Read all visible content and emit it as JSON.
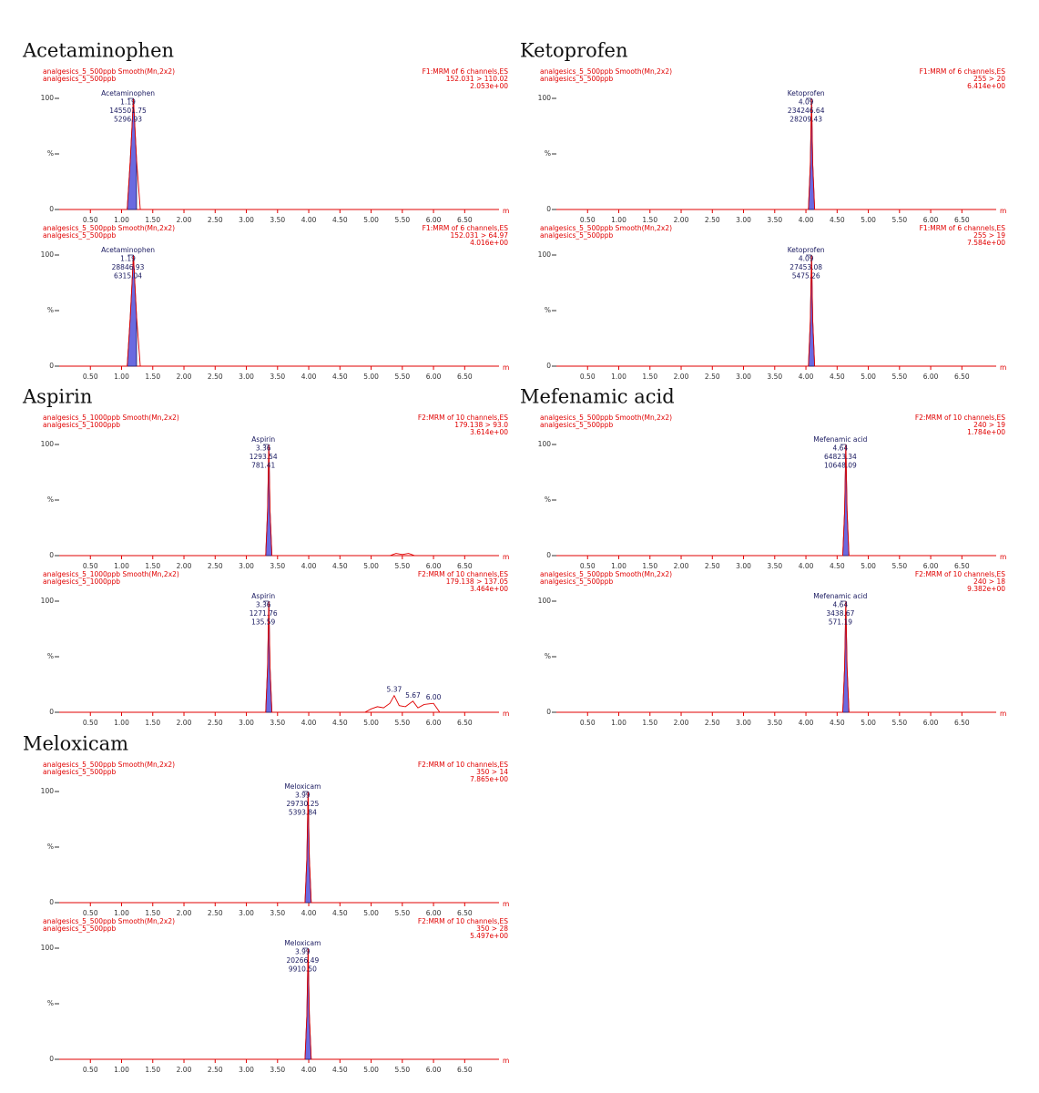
{
  "chart_data": [
    {
      "type": "line",
      "title": "Acetaminophen",
      "header_left": [
        "analgesics_5_500ppb Smooth(Mn,2x2)",
        "analgesics_5_500ppb"
      ],
      "header_right": [
        "F1:MRM of 6 channels,ES",
        "152.031 > 110.02",
        "2.053e+00"
      ],
      "peak_label": [
        "Acetaminophen",
        "1.19",
        "145501.75",
        "5296.93"
      ],
      "x": [
        0,
        1.09,
        1.14,
        1.19,
        1.24,
        1.3,
        7.05
      ],
      "values": [
        0,
        0,
        45,
        100,
        45,
        0,
        0
      ],
      "xlim": [
        0,
        7.05
      ],
      "ylim": [
        0,
        100
      ],
      "xticks": [
        {
          "value": 0.5,
          "label": "0.50"
        },
        {
          "value": 1,
          "label": "1.00"
        },
        {
          "value": 1.5,
          "label": "1.50"
        },
        {
          "value": 2,
          "label": "2.00"
        },
        {
          "value": 2.5,
          "label": "2.50"
        },
        {
          "value": 3,
          "label": "3.00"
        },
        {
          "value": 3.5,
          "label": "3.50"
        },
        {
          "value": 4,
          "label": "4.00"
        },
        {
          "value": 4.5,
          "label": "4.50"
        },
        {
          "value": 5,
          "label": "5.00"
        },
        {
          "value": 5.5,
          "label": "5.50"
        },
        {
          "value": 6,
          "label": "6.00"
        },
        {
          "value": 6.5,
          "label": "6.50"
        }
      ],
      "yticks": [
        0,
        {
          "value": 50,
          "label": "%"
        },
        100
      ],
      "x_label": "m",
      "color": "#e00000",
      "fill_color": "#6a6ae0"
    },
    {
      "type": "line",
      "header_left": [
        "analgesics_5_500ppb Smooth(Mn,2x2)",
        "analgesics_5_500ppb"
      ],
      "header_right": [
        "F1:MRM of 6 channels,ES",
        "152.031 > 64.97",
        "4.016e+00"
      ],
      "peak_label": [
        "Acetaminophen",
        "1.19",
        "28846.93",
        "6315.04"
      ],
      "x": [
        0,
        1.09,
        1.14,
        1.19,
        1.24,
        1.3,
        7.05
      ],
      "values": [
        0,
        0,
        45,
        100,
        45,
        0,
        0
      ],
      "xlim": [
        0,
        7.05
      ],
      "ylim": [
        0,
        100
      ],
      "xticks": [
        {
          "value": 0.5,
          "label": "0.50"
        },
        {
          "value": 1,
          "label": "1.00"
        },
        {
          "value": 1.5,
          "label": "1.50"
        },
        {
          "value": 2,
          "label": "2.00"
        },
        {
          "value": 2.5,
          "label": "2.50"
        },
        {
          "value": 3,
          "label": "3.00"
        },
        {
          "value": 3.5,
          "label": "3.50"
        },
        {
          "value": 4,
          "label": "4.00"
        },
        {
          "value": 4.5,
          "label": "4.50"
        },
        {
          "value": 5,
          "label": "5.00"
        },
        {
          "value": 5.5,
          "label": "5.50"
        },
        {
          "value": 6,
          "label": "6.00"
        },
        {
          "value": 6.5,
          "label": "6.50"
        }
      ],
      "yticks": [
        0,
        {
          "value": 50,
          "label": "%"
        },
        100
      ],
      "x_label": "m",
      "color": "#e00000",
      "fill_color": "#6a6ae0"
    },
    {
      "type": "line",
      "title": "Ketoprofen",
      "header_left": [
        "analgesics_5_500ppb Smooth(Mn,2x2)",
        "analgesics_5_500ppb"
      ],
      "header_right": [
        "F1:MRM of 6 channels,ES",
        "255 > 20",
        "6.414e+00"
      ],
      "peak_label": [
        "Ketoprofen",
        "4.09",
        "234246.64",
        "28209.43"
      ],
      "x": [
        0,
        4.04,
        4.07,
        4.09,
        4.11,
        4.14,
        7.05
      ],
      "values": [
        0,
        0,
        40,
        100,
        40,
        0,
        0
      ],
      "xlim": [
        0,
        7.05
      ],
      "ylim": [
        0,
        100
      ],
      "xticks": [
        {
          "value": 0.5,
          "label": "0.50"
        },
        {
          "value": 1,
          "label": "1.00"
        },
        {
          "value": 1.5,
          "label": "1.50"
        },
        {
          "value": 2,
          "label": "2.00"
        },
        {
          "value": 2.5,
          "label": "2.50"
        },
        {
          "value": 3,
          "label": "3.00"
        },
        {
          "value": 3.5,
          "label": "3.50"
        },
        {
          "value": 4,
          "label": "4.00"
        },
        {
          "value": 4.5,
          "label": "4.50"
        },
        {
          "value": 5,
          "label": "5.00"
        },
        {
          "value": 5.5,
          "label": "5.50"
        },
        {
          "value": 6,
          "label": "6.00"
        },
        {
          "value": 6.5,
          "label": "6.50"
        }
      ],
      "yticks": [
        0,
        {
          "value": 50,
          "label": "%"
        },
        100
      ],
      "x_label": "m",
      "color": "#e00000",
      "fill_color": "#6a6ae0"
    },
    {
      "type": "line",
      "header_left": [
        "analgesics_5_500ppb Smooth(Mn,2x2)",
        "analgesics_5_500ppb"
      ],
      "header_right": [
        "F1:MRM of 6 channels,ES",
        "255 > 19",
        "7.584e+00"
      ],
      "peak_label": [
        "Ketoprofen",
        "4.09",
        "27453.08",
        "5475.26"
      ],
      "x": [
        0,
        4.04,
        4.07,
        4.09,
        4.11,
        4.14,
        7.05
      ],
      "values": [
        0,
        0,
        40,
        100,
        40,
        0,
        0
      ],
      "xlim": [
        0,
        7.05
      ],
      "ylim": [
        0,
        100
      ],
      "xticks": [
        {
          "value": 0.5,
          "label": "0.50"
        },
        {
          "value": 1,
          "label": "1.00"
        },
        {
          "value": 1.5,
          "label": "1.50"
        },
        {
          "value": 2,
          "label": "2.00"
        },
        {
          "value": 2.5,
          "label": "2.50"
        },
        {
          "value": 3,
          "label": "3.00"
        },
        {
          "value": 3.5,
          "label": "3.50"
        },
        {
          "value": 4,
          "label": "4.00"
        },
        {
          "value": 4.5,
          "label": "4.50"
        },
        {
          "value": 5,
          "label": "5.00"
        },
        {
          "value": 5.5,
          "label": "5.50"
        },
        {
          "value": 6,
          "label": "6.00"
        },
        {
          "value": 6.5,
          "label": "6.50"
        }
      ],
      "yticks": [
        0,
        {
          "value": 50,
          "label": "%"
        },
        100
      ],
      "x_label": "m",
      "color": "#e00000",
      "fill_color": "#6a6ae0"
    },
    {
      "type": "line",
      "title": "Aspirin",
      "header_left": [
        "analgesics_5_1000ppb Smooth(Mn,2x2)",
        "analgesics_5_1000ppb"
      ],
      "header_right": [
        "F2:MRM of 10 channels,ES",
        "179.138 > 93.0",
        "3.614e+00"
      ],
      "peak_label": [
        "Aspirin",
        "3.36",
        "1293.54",
        "781.41"
      ],
      "x": [
        0,
        3.31,
        3.34,
        3.36,
        3.38,
        3.41,
        5.3,
        5.4,
        5.5,
        5.6,
        5.7,
        7.05
      ],
      "values": [
        0,
        0,
        40,
        100,
        40,
        0,
        0,
        2,
        1,
        2,
        0,
        0
      ],
      "xlim": [
        0,
        7.05
      ],
      "ylim": [
        0,
        100
      ],
      "xticks": [
        {
          "value": 0.5,
          "label": "0.50"
        },
        {
          "value": 1,
          "label": "1.00"
        },
        {
          "value": 1.5,
          "label": "1.50"
        },
        {
          "value": 2,
          "label": "2.00"
        },
        {
          "value": 2.5,
          "label": "2.50"
        },
        {
          "value": 3,
          "label": "3.00"
        },
        {
          "value": 3.5,
          "label": "3.50"
        },
        {
          "value": 4,
          "label": "4.00"
        },
        {
          "value": 4.5,
          "label": "4.50"
        },
        {
          "value": 5,
          "label": "5.00"
        },
        {
          "value": 5.5,
          "label": "5.50"
        },
        {
          "value": 6,
          "label": "6.00"
        },
        {
          "value": 6.5,
          "label": "6.50"
        }
      ],
      "yticks": [
        0,
        {
          "value": 50,
          "label": "%"
        },
        100
      ],
      "x_label": "m",
      "color": "#e00000",
      "fill_color": "#6a6ae0"
    },
    {
      "type": "line",
      "header_left": [
        "analgesics_5_1000ppb Smooth(Mn,2x2)",
        "analgesics_5_1000ppb"
      ],
      "header_right": [
        "F2:MRM of 10 channels,ES",
        "179.138 > 137.05",
        "3.464e+00"
      ],
      "peak_label": [
        "Aspirin",
        "3.36",
        "1271.76",
        "135.59"
      ],
      "x": [
        0,
        3.31,
        3.34,
        3.36,
        3.38,
        3.41,
        4.9,
        5.0,
        5.1,
        5.2,
        5.3,
        5.37,
        5.45,
        5.55,
        5.67,
        5.75,
        5.85,
        6.0,
        6.1,
        7.05
      ],
      "values": [
        0,
        0,
        40,
        100,
        40,
        0,
        0,
        3,
        5,
        4,
        8,
        15,
        6,
        5,
        10,
        4,
        7,
        8,
        0,
        0
      ],
      "annotations": [
        {
          "x": 5.37,
          "y": 15,
          "label": "5.37"
        },
        {
          "x": 5.67,
          "y": 10,
          "label": "5.67"
        },
        {
          "x": 6,
          "y": 8,
          "label": "6.00"
        }
      ],
      "xlim": [
        0,
        7.05
      ],
      "ylim": [
        0,
        100
      ],
      "xticks": [
        {
          "value": 0.5,
          "label": "0.50"
        },
        {
          "value": 1,
          "label": "1.00"
        },
        {
          "value": 1.5,
          "label": "1.50"
        },
        {
          "value": 2,
          "label": "2.00"
        },
        {
          "value": 2.5,
          "label": "2.50"
        },
        {
          "value": 3,
          "label": "3.00"
        },
        {
          "value": 3.5,
          "label": "3.50"
        },
        {
          "value": 4,
          "label": "4.00"
        },
        {
          "value": 4.5,
          "label": "4.50"
        },
        {
          "value": 5,
          "label": "5.00"
        },
        {
          "value": 5.5,
          "label": "5.50"
        },
        {
          "value": 6,
          "label": "6.00"
        },
        {
          "value": 6.5,
          "label": "6.50"
        }
      ],
      "yticks": [
        0,
        {
          "value": 50,
          "label": "%"
        },
        100
      ],
      "x_label": "m",
      "color": "#e00000",
      "fill_color": "#6a6ae0"
    },
    {
      "type": "line",
      "title": "Mefenamic  acid",
      "header_left": [
        "analgesics_5_500ppb Smooth(Mn,2x2)",
        "analgesics_5_500ppb"
      ],
      "header_right": [
        "F2:MRM of 10 channels,ES",
        "240 > 19",
        "1.784e+00"
      ],
      "peak_label": [
        "Mefenamic acid",
        "4.64",
        "64823.34",
        "10648.09"
      ],
      "x": [
        0,
        4.59,
        4.62,
        4.64,
        4.66,
        4.69,
        7.05
      ],
      "values": [
        0,
        0,
        40,
        100,
        40,
        0,
        0
      ],
      "xlim": [
        0,
        7.05
      ],
      "ylim": [
        0,
        100
      ],
      "xticks": [
        {
          "value": 0.5,
          "label": "0.50"
        },
        {
          "value": 1,
          "label": "1.00"
        },
        {
          "value": 1.5,
          "label": "1.50"
        },
        {
          "value": 2,
          "label": "2.00"
        },
        {
          "value": 2.5,
          "label": "2.50"
        },
        {
          "value": 3,
          "label": "3.00"
        },
        {
          "value": 3.5,
          "label": "3.50"
        },
        {
          "value": 4,
          "label": "4.00"
        },
        {
          "value": 4.5,
          "label": "4.50"
        },
        {
          "value": 5,
          "label": "5.00"
        },
        {
          "value": 5.5,
          "label": "5.50"
        },
        {
          "value": 6,
          "label": "6.00"
        },
        {
          "value": 6.5,
          "label": "6.50"
        }
      ],
      "yticks": [
        0,
        {
          "value": 50,
          "label": "%"
        },
        100
      ],
      "x_label": "m",
      "color": "#e00000",
      "fill_color": "#6a6ae0"
    },
    {
      "type": "line",
      "header_left": [
        "analgesics_5_500ppb Smooth(Mn,2x2)",
        "analgesics_5_500ppb"
      ],
      "header_right": [
        "F2:MRM of 10 channels,ES",
        "240 > 18",
        "9.382e+00"
      ],
      "peak_label": [
        "Mefenamic acid",
        "4.64",
        "3438.67",
        "571.19"
      ],
      "x": [
        0,
        4.59,
        4.62,
        4.64,
        4.66,
        4.69,
        7.05
      ],
      "values": [
        0,
        0,
        40,
        100,
        40,
        0,
        0
      ],
      "xlim": [
        0,
        7.05
      ],
      "ylim": [
        0,
        100
      ],
      "xticks": [
        {
          "value": 0.5,
          "label": "0.50"
        },
        {
          "value": 1,
          "label": "1.00"
        },
        {
          "value": 1.5,
          "label": "1.50"
        },
        {
          "value": 2,
          "label": "2.00"
        },
        {
          "value": 2.5,
          "label": "2.50"
        },
        {
          "value": 3,
          "label": "3.00"
        },
        {
          "value": 3.5,
          "label": "3.50"
        },
        {
          "value": 4,
          "label": "4.00"
        },
        {
          "value": 4.5,
          "label": "4.50"
        },
        {
          "value": 5,
          "label": "5.00"
        },
        {
          "value": 5.5,
          "label": "5.50"
        },
        {
          "value": 6,
          "label": "6.00"
        },
        {
          "value": 6.5,
          "label": "6.50"
        }
      ],
      "yticks": [
        0,
        {
          "value": 50,
          "label": "%"
        },
        100
      ],
      "x_label": "m",
      "color": "#e00000",
      "fill_color": "#6a6ae0"
    },
    {
      "type": "line",
      "title": "Meloxicam",
      "header_left": [
        "analgesics_5_500ppb Smooth(Mn,2x2)",
        "analgesics_5_500ppb"
      ],
      "header_right": [
        "F2:MRM of 10 channels,ES",
        "350 > 14",
        "7.865e+00"
      ],
      "peak_label": [
        "Meloxicam",
        "3.99",
        "29730.25",
        "5393.84"
      ],
      "x": [
        0,
        3.94,
        3.97,
        3.99,
        4.01,
        4.04,
        7.05
      ],
      "values": [
        0,
        0,
        40,
        100,
        40,
        0,
        0
      ],
      "xlim": [
        0,
        7.05
      ],
      "ylim": [
        0,
        100
      ],
      "xticks": [
        {
          "value": 0.5,
          "label": "0.50"
        },
        {
          "value": 1,
          "label": "1.00"
        },
        {
          "value": 1.5,
          "label": "1.50"
        },
        {
          "value": 2,
          "label": "2.00"
        },
        {
          "value": 2.5,
          "label": "2.50"
        },
        {
          "value": 3,
          "label": "3.00"
        },
        {
          "value": 3.5,
          "label": "3.50"
        },
        {
          "value": 4,
          "label": "4.00"
        },
        {
          "value": 4.5,
          "label": "4.50"
        },
        {
          "value": 5,
          "label": "5.00"
        },
        {
          "value": 5.5,
          "label": "5.50"
        },
        {
          "value": 6,
          "label": "6.00"
        },
        {
          "value": 6.5,
          "label": "6.50"
        }
      ],
      "yticks": [
        0,
        {
          "value": 50,
          "label": "%"
        },
        100
      ],
      "x_label": "m",
      "color": "#e00000",
      "fill_color": "#6a6ae0"
    },
    {
      "type": "line",
      "header_left": [
        "analgesics_5_500ppb Smooth(Mn,2x2)",
        "analgesics_5_500ppb"
      ],
      "header_right": [
        "F2:MRM of 10 channels,ES",
        "350 > 28",
        "5.497e+00"
      ],
      "peak_label": [
        "Meloxicam",
        "3.99",
        "20266.49",
        "9910.50"
      ],
      "x": [
        0,
        3.94,
        3.97,
        3.99,
        4.01,
        4.04,
        7.05
      ],
      "values": [
        0,
        0,
        40,
        100,
        40,
        0,
        0
      ],
      "xlim": [
        0,
        7.05
      ],
      "ylim": [
        0,
        100
      ],
      "xticks": [
        {
          "value": 0.5,
          "label": "0.50"
        },
        {
          "value": 1,
          "label": "1.00"
        },
        {
          "value": 1.5,
          "label": "1.50"
        },
        {
          "value": 2,
          "label": "2.00"
        },
        {
          "value": 2.5,
          "label": "2.50"
        },
        {
          "value": 3,
          "label": "3.00"
        },
        {
          "value": 3.5,
          "label": "3.50"
        },
        {
          "value": 4,
          "label": "4.00"
        },
        {
          "value": 4.5,
          "label": "4.50"
        },
        {
          "value": 5,
          "label": "5.00"
        },
        {
          "value": 5.5,
          "label": "5.50"
        },
        {
          "value": 6,
          "label": "6.00"
        },
        {
          "value": 6.5,
          "label": "6.50"
        }
      ],
      "yticks": [
        0,
        {
          "value": 50,
          "label": "%"
        },
        100
      ],
      "x_label": "m",
      "color": "#e00000",
      "fill_color": "#6a6ae0"
    }
  ]
}
